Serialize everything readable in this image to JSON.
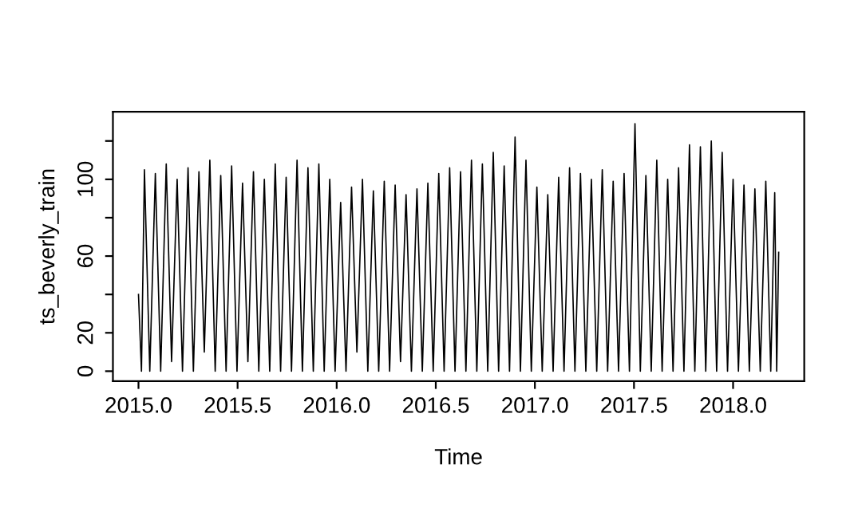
{
  "chart_data": {
    "type": "line",
    "xlabel": "Time",
    "ylabel": "ts_beverly_train",
    "x": [
      2015.0,
      2015.015,
      2015.03,
      2015.057,
      2015.085,
      2015.112,
      2015.14,
      2015.167,
      2015.195,
      2015.222,
      2015.25,
      2015.277,
      2015.305,
      2015.332,
      2015.36,
      2015.387,
      2015.415,
      2015.442,
      2015.47,
      2015.497,
      2015.525,
      2015.552,
      2015.58,
      2015.607,
      2015.635,
      2015.662,
      2015.69,
      2015.717,
      2015.745,
      2015.772,
      2015.8,
      2015.827,
      2015.855,
      2015.882,
      2015.91,
      2015.937,
      2015.965,
      2015.992,
      2016.02,
      2016.047,
      2016.075,
      2016.102,
      2016.13,
      2016.157,
      2016.185,
      2016.212,
      2016.24,
      2016.267,
      2016.295,
      2016.322,
      2016.35,
      2016.377,
      2016.405,
      2016.432,
      2016.46,
      2016.487,
      2016.515,
      2016.542,
      2016.57,
      2016.597,
      2016.625,
      2016.652,
      2016.68,
      2016.707,
      2016.735,
      2016.762,
      2016.79,
      2016.817,
      2016.845,
      2016.872,
      2016.9,
      2016.927,
      2016.955,
      2016.982,
      2017.01,
      2017.037,
      2017.065,
      2017.092,
      2017.12,
      2017.147,
      2017.175,
      2017.202,
      2017.23,
      2017.257,
      2017.285,
      2017.312,
      2017.34,
      2017.367,
      2017.395,
      2017.422,
      2017.45,
      2017.477,
      2017.505,
      2017.532,
      2017.56,
      2017.587,
      2017.615,
      2017.642,
      2017.67,
      2017.697,
      2017.725,
      2017.752,
      2017.78,
      2017.807,
      2017.835,
      2017.862,
      2017.89,
      2017.917,
      2017.945,
      2017.972,
      2018.0,
      2018.027,
      2018.055,
      2018.082,
      2018.11,
      2018.137,
      2018.165,
      2018.19,
      2018.21,
      2018.22,
      2018.23
    ],
    "series": [
      {
        "color": "#000000",
        "values": [
          40,
          0,
          105,
          0,
          103,
          0,
          108,
          5,
          100,
          0,
          106,
          0,
          104,
          10,
          110,
          0,
          102,
          0,
          107,
          0,
          98,
          5,
          104,
          0,
          100,
          0,
          108,
          0,
          101,
          0,
          110,
          0,
          106,
          0,
          108,
          0,
          100,
          0,
          88,
          0,
          96,
          10,
          100,
          0,
          94,
          0,
          99,
          0,
          97,
          5,
          92,
          0,
          95,
          0,
          98,
          0,
          103,
          0,
          106,
          0,
          104,
          0,
          110,
          0,
          108,
          0,
          114,
          0,
          107,
          0,
          122,
          0,
          110,
          0,
          96,
          0,
          92,
          0,
          101,
          0,
          106,
          0,
          103,
          0,
          100,
          0,
          105,
          0,
          99,
          0,
          103,
          0,
          129,
          0,
          102,
          0,
          110,
          0,
          100,
          0,
          106,
          0,
          118,
          0,
          117,
          0,
          120,
          0,
          114,
          0,
          100,
          0,
          97,
          0,
          95,
          0,
          99,
          0,
          93,
          0,
          62
        ]
      }
    ],
    "xlim": [
      2014.871,
      2018.359
    ],
    "xticks": [
      {
        "value": 2015,
        "label": "2015.0"
      },
      {
        "value": 2015.5,
        "label": "2015.5"
      },
      {
        "value": 2016,
        "label": "2016.0"
      },
      {
        "value": 2016.5,
        "label": "2016.5"
      },
      {
        "value": 2017,
        "label": "2017.0"
      },
      {
        "value": 2017.5,
        "label": "2017.5"
      },
      {
        "value": 2018,
        "label": "2018.0"
      }
    ],
    "ylim": [
      -5.2,
      135.2
    ],
    "yticks": [
      0,
      20,
      {
        "value": 40,
        "label": null
      },
      60,
      {
        "value": 80,
        "label": null
      },
      100,
      {
        "value": 120,
        "label": null
      }
    ],
    "grid": false,
    "legend": false,
    "marker": "none",
    "line_style": "solid"
  }
}
